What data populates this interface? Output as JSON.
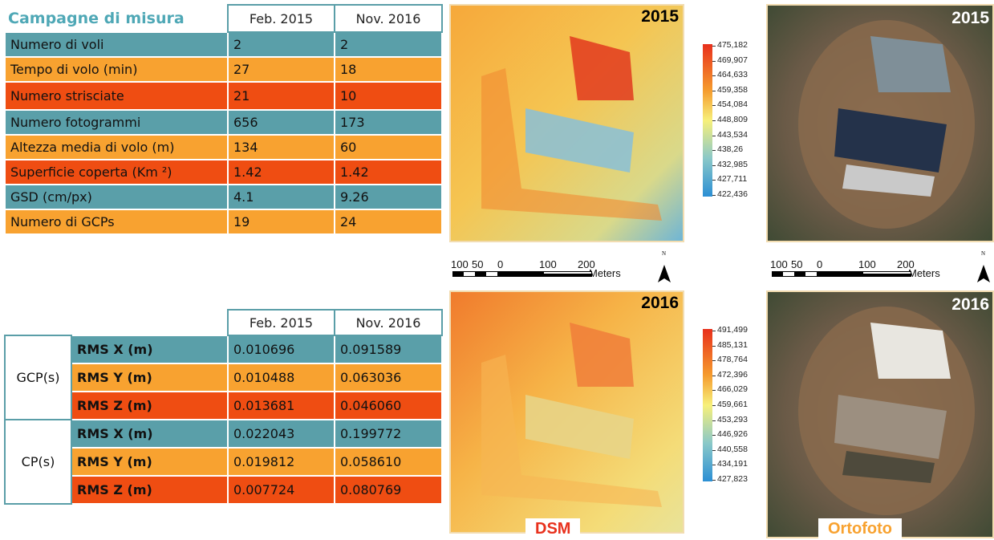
{
  "table1": {
    "title": "Campagne di misura",
    "columns": [
      "Feb. 2015",
      "Nov. 2016"
    ],
    "rows": [
      [
        "Numero di voli",
        "2",
        "2"
      ],
      [
        "Tempo di volo (min)",
        "27",
        "18"
      ],
      [
        "Numero strisciate",
        "21",
        "10"
      ],
      [
        "Numero fotogrammi",
        "656",
        "173"
      ],
      [
        "Altezza media di volo (m)",
        "134",
        "60"
      ],
      [
        "Superficie coperta (Km ²)",
        "1.42",
        "1.42"
      ],
      [
        "GSD (cm/px)",
        "4.1",
        "9.26"
      ],
      [
        "Numero di GCPs",
        "19",
        "24"
      ]
    ]
  },
  "table2": {
    "columns": [
      "Feb. 2015",
      "Nov. 2016"
    ],
    "groups": [
      {
        "label": "GCP(s)",
        "rows": [
          [
            "RMS X (m)",
            "0.010696",
            "0.091589"
          ],
          [
            "RMS Y (m)",
            "0.010488",
            "0.063036"
          ],
          [
            "RMS Z (m)",
            "0.013681",
            "0.046060"
          ]
        ]
      },
      {
        "label": "CP(s)",
        "rows": [
          [
            "RMS X (m)",
            "0.022043",
            "0.199772"
          ],
          [
            "RMS Y (m)",
            "0.019812",
            "0.058610"
          ],
          [
            "RMS Z (m)",
            "0.007724",
            "0.080769"
          ]
        ]
      }
    ]
  },
  "dsm": [
    {
      "year": "2015",
      "legend": [
        "475,182",
        "469,907",
        "464,633",
        "459,358",
        "454,084",
        "448,809",
        "443,534",
        "438,26",
        "432,985",
        "427,711",
        "422,436"
      ]
    },
    {
      "year": "2016",
      "legend": [
        "491,499",
        "485,131",
        "478,764",
        "472,396",
        "466,029",
        "459,661",
        "453,293",
        "446,926",
        "440,558",
        "434,191",
        "427,823"
      ]
    }
  ],
  "ortho": [
    {
      "year": "2015"
    },
    {
      "year": "2016"
    }
  ],
  "scale_bars": [
    {
      "labels": [
        "100",
        "50",
        "0",
        "100",
        "200"
      ],
      "unit": "Meters",
      "north": "N"
    },
    {
      "labels": [
        "100",
        "50",
        "0",
        "100",
        "200"
      ],
      "unit": "Meters",
      "north": "N"
    }
  ],
  "captions": {
    "dsm": "DSM",
    "ortho": "Ortofoto"
  }
}
